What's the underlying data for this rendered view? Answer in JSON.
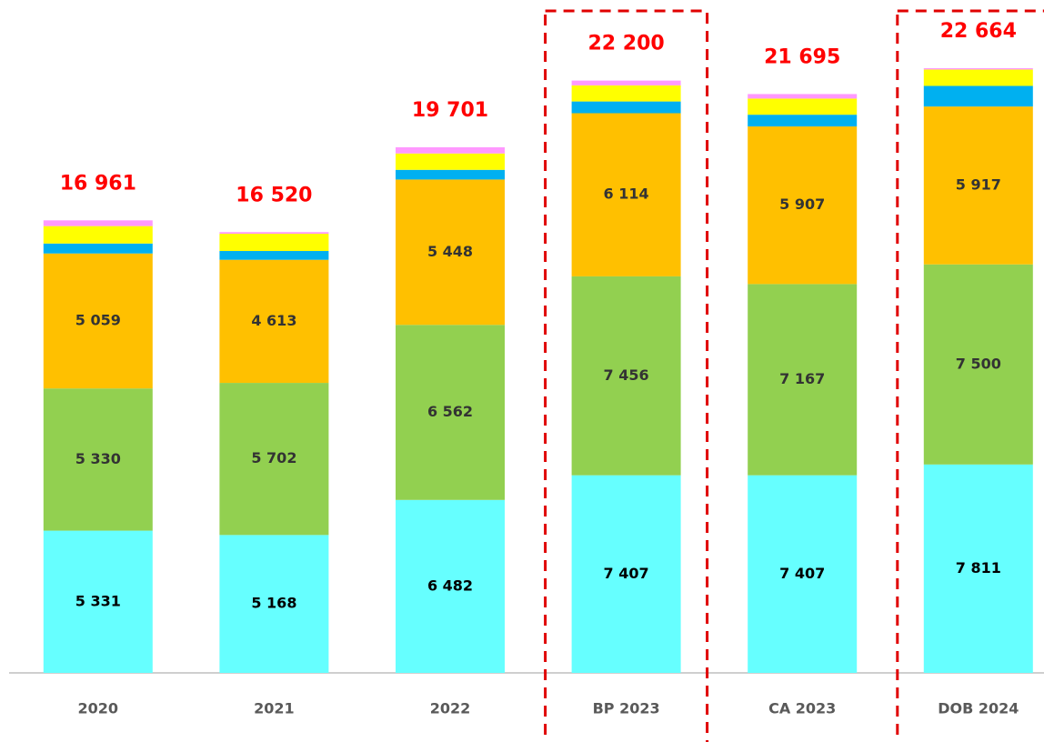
{
  "chart_data": {
    "type": "stacked_bar",
    "categories": [
      "2020",
      "2021",
      "2022",
      "BP 2023",
      "CA 2023",
      "DOB 2024"
    ],
    "series": [
      {
        "color": "#66ffff",
        "label_color": "#000000",
        "values": [
          5331,
          5168,
          6482,
          7407,
          7407,
          7811
        ],
        "value_labels": [
          "5 331",
          "5 168",
          "6 482",
          "7 407",
          "7 407",
          "7 811"
        ]
      },
      {
        "color": "#92d050",
        "label_color": "#333333",
        "values": [
          5330,
          5702,
          6562,
          7456,
          7167,
          7500
        ],
        "value_labels": [
          "5 330",
          "5 702",
          "6 562",
          "7 456",
          "7 167",
          "7 500"
        ]
      },
      {
        "color": "#ffc000",
        "label_color": "#333333",
        "values": [
          5059,
          4613,
          5448,
          6114,
          5907,
          5917
        ],
        "value_labels": [
          "5 059",
          "4 613",
          "5 448",
          "6 114",
          "5 907",
          "5 917"
        ]
      },
      {
        "color": "#00b0f0",
        "label_color": "#ffffff",
        "values": [
          373,
          330,
          363,
          440,
          440,
          772
        ]
      },
      {
        "color": "#ffff00",
        "label_color": "#333333",
        "values": [
          654,
          646,
          613,
          604,
          604,
          615
        ]
      },
      {
        "color": "#ff99ff",
        "values": [
          214,
          61,
          233,
          179,
          170,
          49
        ]
      }
    ],
    "totals": {
      "color": "#ff0000",
      "values": [
        16961,
        16520,
        19701,
        22200,
        21695,
        22664
      ],
      "value_labels": [
        "16 961",
        "16 520",
        "19 701",
        "22 200",
        "21 695",
        "22 664"
      ]
    },
    "highlighted_categories": [
      "BP 2023",
      "DOB 2024"
    ],
    "highlight_color": "#e00000"
  }
}
